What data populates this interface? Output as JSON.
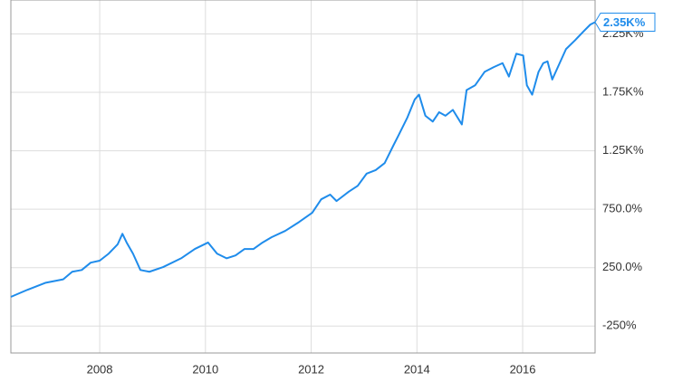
{
  "chart_data": {
    "type": "line",
    "x": [
      2006.32,
      2006.63,
      2006.97,
      2007.31,
      2007.48,
      2007.66,
      2007.83,
      2008.0,
      2008.17,
      2008.34,
      2008.43,
      2008.51,
      2008.63,
      2008.77,
      2008.94,
      2009.2,
      2009.54,
      2009.8,
      2010.05,
      2010.22,
      2010.4,
      2010.57,
      2010.74,
      2010.91,
      2011.08,
      2011.25,
      2011.51,
      2011.77,
      2012.02,
      2012.19,
      2012.36,
      2012.48,
      2012.71,
      2012.88,
      2013.05,
      2013.22,
      2013.39,
      2013.56,
      2013.65,
      2013.82,
      2013.96,
      2014.04,
      2014.16,
      2014.3,
      2014.42,
      2014.54,
      2014.68,
      2014.85,
      2014.94,
      2015.1,
      2015.28,
      2015.45,
      2015.62,
      2015.74,
      2015.88,
      2016.01,
      2016.08,
      2016.18,
      2016.3,
      2016.39,
      2016.47,
      2016.56,
      2016.7,
      2016.82,
      2016.99,
      2017.16,
      2017.28,
      2017.37
    ],
    "values": [
      0,
      60,
      120,
      150,
      215,
      230,
      293,
      310,
      370,
      450,
      540,
      465,
      370,
      230,
      215,
      255,
      330,
      410,
      465,
      370,
      330,
      355,
      410,
      410,
      465,
      510,
      565,
      640,
      720,
      835,
      875,
      820,
      900,
      950,
      1055,
      1085,
      1145,
      1300,
      1380,
      1535,
      1690,
      1730,
      1550,
      1500,
      1580,
      1550,
      1600,
      1475,
      1770,
      1810,
      1925,
      1965,
      2000,
      1885,
      2080,
      2065,
      1810,
      1730,
      1925,
      2000,
      2015,
      1860,
      2000,
      2120,
      2195,
      2275,
      2330,
      2350
    ],
    "color": "#1f8ceb",
    "end_label": {
      "value": 2350,
      "label": "2.35K%"
    },
    "xlim": [
      2006.32,
      2017.37
    ],
    "xticks": [
      2008,
      2010,
      2012,
      2014,
      2016
    ],
    "ylim": [
      -480,
      2540
    ],
    "yticks": [
      {
        "value": -250,
        "label": "-250%"
      },
      {
        "value": 250,
        "label": "250.0%"
      },
      {
        "value": 750,
        "label": "750.0%"
      },
      {
        "value": 1250,
        "label": "1.25K%"
      },
      {
        "value": 1750,
        "label": "1.75K%"
      },
      {
        "value": 2250,
        "label": "2.25K%"
      }
    ],
    "grid": true
  }
}
